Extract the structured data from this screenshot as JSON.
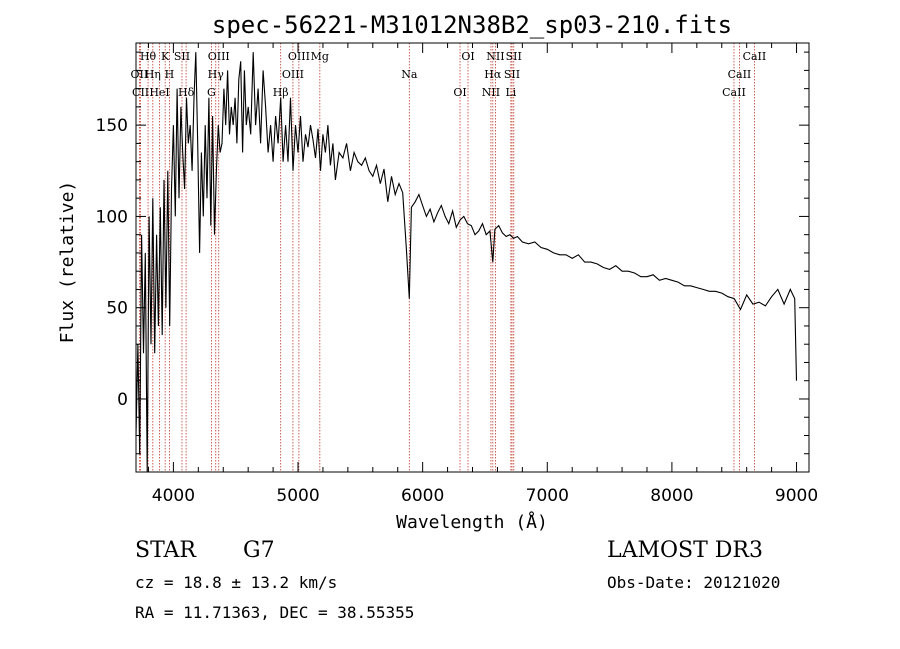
{
  "chart_data": {
    "type": "line",
    "title": "spec-56221-M31012N38B2_sp03-210.fits",
    "xlabel": "Wavelength (Å)",
    "ylabel": "Flux (relative)",
    "xlim": [
      3700,
      9100
    ],
    "ylim": [
      -40,
      195
    ],
    "xticks": [
      4000,
      5000,
      6000,
      7000,
      8000,
      9000
    ],
    "xtick_labels": [
      "4000",
      "5000",
      "6000",
      "7000",
      "8000",
      "9000"
    ],
    "yticks": [
      0,
      50,
      100,
      150
    ],
    "ytick_labels": [
      "0",
      "50",
      "100",
      "150"
    ],
    "series": [
      {
        "name": "flux",
        "x": [
          3700,
          3715,
          3730,
          3745,
          3760,
          3775,
          3790,
          3805,
          3820,
          3835,
          3850,
          3865,
          3880,
          3895,
          3910,
          3925,
          3940,
          3955,
          3970,
          3985,
          4000,
          4015,
          4030,
          4045,
          4060,
          4075,
          4090,
          4105,
          4120,
          4135,
          4150,
          4165,
          4180,
          4195,
          4210,
          4225,
          4240,
          4255,
          4270,
          4285,
          4300,
          4315,
          4330,
          4345,
          4360,
          4375,
          4390,
          4405,
          4420,
          4435,
          4450,
          4465,
          4480,
          4495,
          4510,
          4525,
          4540,
          4555,
          4570,
          4585,
          4600,
          4620,
          4640,
          4660,
          4680,
          4700,
          4720,
          4740,
          4760,
          4780,
          4800,
          4820,
          4840,
          4861,
          4880,
          4900,
          4920,
          4940,
          4960,
          4980,
          5000,
          5020,
          5040,
          5060,
          5080,
          5100,
          5120,
          5140,
          5160,
          5180,
          5200,
          5220,
          5240,
          5260,
          5280,
          5300,
          5330,
          5360,
          5390,
          5420,
          5450,
          5480,
          5510,
          5540,
          5570,
          5600,
          5630,
          5660,
          5690,
          5720,
          5750,
          5780,
          5810,
          5840,
          5870,
          5893,
          5910,
          5940,
          5970,
          6000,
          6030,
          6060,
          6090,
          6120,
          6150,
          6180,
          6210,
          6240,
          6270,
          6300,
          6330,
          6360,
          6390,
          6420,
          6450,
          6480,
          6510,
          6540,
          6563,
          6580,
          6610,
          6640,
          6670,
          6700,
          6730,
          6760,
          6800,
          6850,
          6900,
          6950,
          7000,
          7050,
          7100,
          7150,
          7200,
          7250,
          7300,
          7350,
          7400,
          7450,
          7500,
          7550,
          7600,
          7650,
          7700,
          7750,
          7800,
          7850,
          7900,
          7950,
          8000,
          8050,
          8100,
          8150,
          8200,
          8250,
          8300,
          8350,
          8400,
          8450,
          8500,
          8550,
          8600,
          8650,
          8700,
          8750,
          8800,
          8850,
          8900,
          8950,
          8985,
          9000
        ],
        "y": [
          -20,
          30,
          -30,
          90,
          25,
          80,
          -40,
          100,
          30,
          110,
          25,
          90,
          40,
          105,
          35,
          120,
          50,
          125,
          40,
          115,
          150,
          100,
          170,
          110,
          160,
          135,
          115,
          165,
          140,
          150,
          125,
          165,
          190,
          140,
          80,
          135,
          100,
          150,
          110,
          165,
          95,
          155,
          90,
          125,
          150,
          135,
          140,
          170,
          150,
          180,
          145,
          160,
          150,
          165,
          140,
          175,
          185,
          135,
          180,
          150,
          160,
          145,
          190,
          150,
          170,
          140,
          180,
          160,
          135,
          150,
          130,
          155,
          140,
          165,
          130,
          150,
          130,
          165,
          125,
          150,
          135,
          155,
          130,
          145,
          138,
          150,
          142,
          132,
          148,
          125,
          145,
          135,
          150,
          128,
          140,
          120,
          135,
          132,
          140,
          125,
          135,
          130,
          128,
          132,
          125,
          122,
          128,
          118,
          126,
          108,
          122,
          112,
          118,
          113,
          82,
          55,
          105,
          108,
          112,
          106,
          100,
          104,
          97,
          102,
          106,
          100,
          96,
          103,
          94,
          98,
          100,
          96,
          95,
          90,
          92,
          96,
          90,
          92,
          75,
          93,
          95,
          91,
          89,
          90,
          88,
          89,
          86,
          85,
          86,
          83,
          82,
          80,
          79,
          79,
          77,
          79,
          75,
          75,
          74,
          72,
          71,
          73,
          70,
          70,
          69,
          67,
          67,
          68,
          65,
          66,
          65,
          64,
          62,
          62,
          61,
          60,
          59,
          59,
          58,
          56,
          55,
          49,
          57,
          52,
          53,
          51,
          56,
          60,
          52,
          60,
          55,
          10
        ]
      }
    ],
    "lines": [
      {
        "label": "Hθ",
        "x": 3797
      },
      {
        "label": "OII",
        "x": 3727
      },
      {
        "label": "CII",
        "x": 3737
      },
      {
        "label": "K",
        "x": 3934
      },
      {
        "label": "Hη",
        "x": 3835
      },
      {
        "label": "HeI",
        "x": 3889
      },
      {
        "label": "SII",
        "x": 4069
      },
      {
        "label": "H",
        "x": 3968
      },
      {
        "label": "Hδ",
        "x": 4102
      },
      {
        "label": "OIII",
        "x": 4364
      },
      {
        "label": "Hγ",
        "x": 4340
      },
      {
        "label": "G",
        "x": 4305
      },
      {
        "label": "OIII",
        "x": 5007
      },
      {
        "label": "OIII",
        "x": 4959
      },
      {
        "label": "Hβ",
        "x": 4861
      },
      {
        "label": "Mg",
        "x": 5175
      },
      {
        "label": "Na",
        "x": 5893
      },
      {
        "label": "OI",
        "x": 6300
      },
      {
        "label": "OI",
        "x": 6364
      },
      {
        "label": "Hα",
        "x": 6563
      },
      {
        "label": "NII",
        "x": 6548
      },
      {
        "label": "NII",
        "x": 6584
      },
      {
        "label": "SII",
        "x": 6717
      },
      {
        "label": "Li",
        "x": 6708
      },
      {
        "label": "SII",
        "x": 6731
      },
      {
        "label": "CaII",
        "x": 8542
      },
      {
        "label": "CaII",
        "x": 8498
      },
      {
        "label": "CaII",
        "x": 8662
      }
    ]
  },
  "info": {
    "object_class": "STAR",
    "subclass": "G7",
    "survey": "LAMOST DR3",
    "redshift": "cz = 18.8 ± 13.2 km/s",
    "obs_date": "Obs-Date: 20121020",
    "coords": "RA =  11.71363, DEC =  38.55355"
  },
  "colors": {
    "axis": "#000000",
    "spectrum": "#000000",
    "lines": "#c0392b"
  }
}
